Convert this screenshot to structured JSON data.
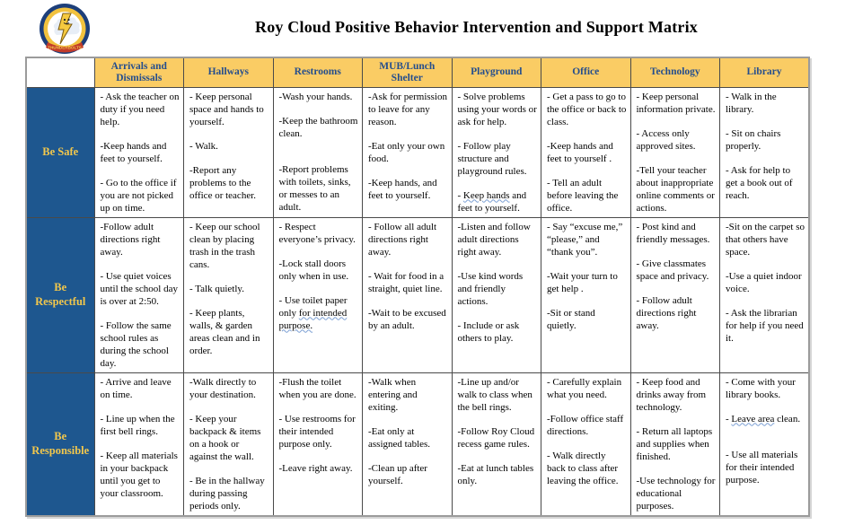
{
  "page": {
    "title": "Roy Cloud Positive Behavior Intervention and Support Matrix"
  },
  "logo": {
    "banner": "THUNDERBOLTS"
  },
  "colors": {
    "header_bg": "#FACC64",
    "header_text": "#254E8D",
    "row_header_bg": "#1E578F",
    "row_header_text": "#F2C74C",
    "logo_navy": "#1d3f7a",
    "logo_gold": "#f2c23e",
    "logo_red": "#c23b2a"
  },
  "table": {
    "columns": [
      "Arrivals and Dismissals",
      "Hallways",
      "Restrooms",
      "MUB/Lunch Shelter",
      "Playground",
      "Office",
      "Technology",
      "Library"
    ],
    "rows": [
      {
        "label": "Be Safe",
        "cells": [
          [
            "- Ask the teacher on duty  if you need help.",
            "-Keep hands and feet to yourself.",
            "- Go to the office if you are not picked up on time."
          ],
          [
            "- Keep personal space and hands to yourself.",
            "- Walk.",
            "-Report any problems to the office or teacher."
          ],
          [
            "-Wash your hands.",
            "-Keep the bathroom clean.",
            "",
            "-Report problems with toilets, sinks, or messes to an adult."
          ],
          [
            "-Ask for permission to leave for any reason.",
            "-Eat only your own food.",
            "-Keep hands, and feet to  yourself."
          ],
          [
            "- Solve problems using your words or ask for help.",
            "- Follow play structure and playground rules.",
            {
              "text": "- Keep hands and feet to yourself.",
              "underline": "Keep hands"
            }
          ],
          [
            "- Get a pass to go to the office or back to class.",
            "-Keep hands and feet to yourself .",
            "- Tell an adult before leaving the office."
          ],
          [
            "- Keep personal information private.",
            "- Access only approved sites.",
            "-Tell your teacher about inappropriate online comments or actions."
          ],
          [
            "- Walk in the library.",
            "- Sit on chairs properly.",
            "- Ask for help to get a book out of reach."
          ]
        ]
      },
      {
        "label": "Be Respectful",
        "cells": [
          [
            "-Follow adult directions right away.",
            "- Use quiet voices until the school day is over at 2:50.",
            "- Follow the same school rules as during the school day."
          ],
          [
            "- Keep our school clean by placing trash in the trash cans.",
            "- Talk quietly.",
            "- Keep plants, walls, & garden areas clean and in order."
          ],
          [
            "- Respect everyone’s privacy.",
            "-Lock stall doors only when in use.",
            {
              "text": "- Use toilet paper only for intended purpose.",
              "underline": "for intended purpose."
            }
          ],
          [
            "- Follow all adult directions right away.",
            "- Wait for food in a straight, quiet line.",
            "-Wait to be excused by an adult."
          ],
          [
            "-Listen and follow adult directions right away.",
            "-Use kind words and friendly actions.",
            "- Include or ask others to play."
          ],
          [
            "- Say “excuse me,” “please,” and “thank you”.",
            "-Wait your turn to get help .",
            "-Sit or stand quietly."
          ],
          [
            "- Post kind and friendly  messages.",
            "- Give  classmates space and privacy.",
            "- Follow adult directions right away."
          ],
          [
            "-Sit on the carpet so that others have space.",
            "-Use a quiet indoor voice.",
            "- Ask the librarian for help if you need it."
          ]
        ]
      },
      {
        "label": "Be Responsible",
        "cells": [
          [
            "- Arrive and leave on time.",
            "- Line up when the first bell rings.",
            "- Keep all materials in your backpack until you get to your classroom."
          ],
          [
            "-Walk directly to your destination.",
            "- Keep your backpack & items on a hook or against the wall.",
            "- Be in the hallway during passing periods only."
          ],
          [
            "-Flush the toilet when you are done.",
            "- Use restrooms for their intended purpose only.",
            "-Leave right away."
          ],
          [
            "-Walk when entering and exiting.",
            "-Eat only at assigned tables.",
            "-Clean up after yourself."
          ],
          [
            "-Line up and/or walk to class when the bell rings.",
            "-Follow Roy Cloud recess game rules.",
            "-Eat at lunch tables only."
          ],
          [
            "- Carefully explain what you need.",
            "-Follow office staff directions.",
            "- Walk directly back to class after leaving the office."
          ],
          [
            "- Keep food and drinks away from technology.",
            "- Return all laptops and supplies when finished.",
            "-Use technology for educational purposes."
          ],
          [
            "- Come with your library books.",
            {
              "text": "- Leave area clean.",
              "underline": "Leave area"
            },
            "",
            "- Use all materials for their intended purpose."
          ]
        ]
      }
    ]
  }
}
